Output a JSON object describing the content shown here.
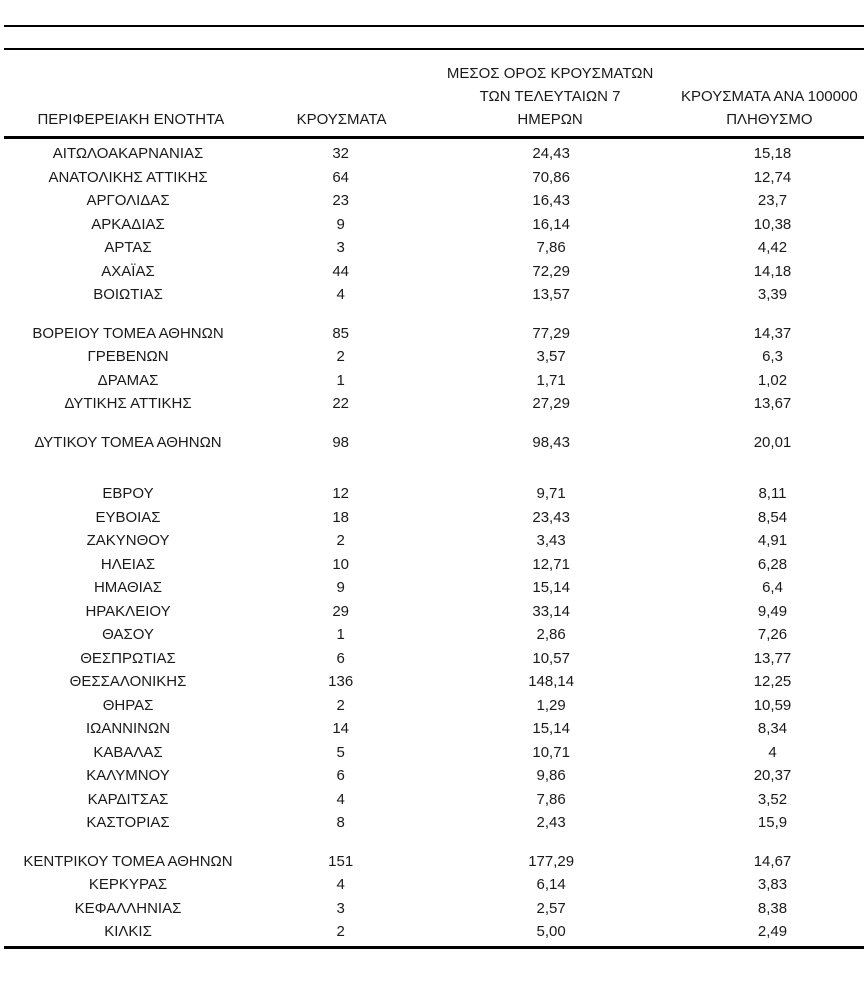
{
  "colors": {
    "text": "#1a1a1a",
    "rule": "#000000",
    "background": "#ffffff"
  },
  "table": {
    "header": {
      "region": "ΠΕΡΙΦΕΡΕΙΑΚΗ ΕΝΟΤΗΤΑ",
      "cases": "ΚΡΟΥΣΜΑΤΑ",
      "avg7_line1": "ΜΕΣΟΣ ΟΡΟΣ ΚΡΟΥΣΜΑΤΩΝ",
      "avg7_line2": "ΤΩΝ ΤΕΛΕΥΤΑΙΩΝ 7",
      "avg7_line3": "ΗΜΕΡΩΝ",
      "per100k_line1": "ΚΡΟΥΣΜΑΤΑ ΑΝΑ 100000",
      "per100k_line2": "ΠΛΗΘΥΣΜΟ"
    },
    "rows": [
      {
        "region": "ΑΙΤΩΛΟΑΚΑΡΝΑΝΙΑΣ",
        "cases": "32",
        "avg7": "24,43",
        "per100k": "15,18",
        "group_break": null
      },
      {
        "region": "ΑΝΑΤΟΛΙΚΗΣ ΑΤΤΙΚΗΣ",
        "cases": "64",
        "avg7": "70,86",
        "per100k": "12,74",
        "group_break": null
      },
      {
        "region": "ΑΡΓΟΛΙΔΑΣ",
        "cases": "23",
        "avg7": "16,43",
        "per100k": "23,7",
        "group_break": null
      },
      {
        "region": "ΑΡΚΑΔΙΑΣ",
        "cases": "9",
        "avg7": "16,14",
        "per100k": "10,38",
        "group_break": null
      },
      {
        "region": "ΑΡΤΑΣ",
        "cases": "3",
        "avg7": "7,86",
        "per100k": "4,42",
        "group_break": null
      },
      {
        "region": "ΑΧΑΪΑΣ",
        "cases": "44",
        "avg7": "72,29",
        "per100k": "14,18",
        "group_break": null
      },
      {
        "region": "ΒΟΙΩΤΙΑΣ",
        "cases": "4",
        "avg7": "13,57",
        "per100k": "3,39",
        "group_break": null
      },
      {
        "region": "ΒΟΡΕΙΟΥ ΤΟΜΕΑ ΑΘΗΝΩΝ",
        "cases": "85",
        "avg7": "77,29",
        "per100k": "14,37",
        "group_break": "small"
      },
      {
        "region": "ΓΡΕΒΕΝΩΝ",
        "cases": "2",
        "avg7": "3,57",
        "per100k": "6,3",
        "group_break": null
      },
      {
        "region": "ΔΡΑΜΑΣ",
        "cases": "1",
        "avg7": "1,71",
        "per100k": "1,02",
        "group_break": null
      },
      {
        "region": "ΔΥΤΙΚΗΣ ΑΤΤΙΚΗΣ",
        "cases": "22",
        "avg7": "27,29",
        "per100k": "13,67",
        "group_break": null
      },
      {
        "region": "ΔΥΤΙΚΟΥ ΤΟΜΕΑ ΑΘΗΝΩΝ",
        "cases": "98",
        "avg7": "98,43",
        "per100k": "20,01",
        "group_break": "small"
      },
      {
        "region": "ΕΒΡΟΥ",
        "cases": "12",
        "avg7": "9,71",
        "per100k": "8,11",
        "group_break": "large"
      },
      {
        "region": "ΕΥΒΟΙΑΣ",
        "cases": "18",
        "avg7": "23,43",
        "per100k": "8,54",
        "group_break": null
      },
      {
        "region": "ΖΑΚΥΝΘΟΥ",
        "cases": "2",
        "avg7": "3,43",
        "per100k": "4,91",
        "group_break": null
      },
      {
        "region": "ΗΛΕΙΑΣ",
        "cases": "10",
        "avg7": "12,71",
        "per100k": "6,28",
        "group_break": null
      },
      {
        "region": "ΗΜΑΘΙΑΣ",
        "cases": "9",
        "avg7": "15,14",
        "per100k": "6,4",
        "group_break": null
      },
      {
        "region": "ΗΡΑΚΛΕΙΟΥ",
        "cases": "29",
        "avg7": "33,14",
        "per100k": "9,49",
        "group_break": null
      },
      {
        "region": "ΘΑΣΟΥ",
        "cases": "1",
        "avg7": "2,86",
        "per100k": "7,26",
        "group_break": null
      },
      {
        "region": "ΘΕΣΠΡΩΤΙΑΣ",
        "cases": "6",
        "avg7": "10,57",
        "per100k": "13,77",
        "group_break": null
      },
      {
        "region": "ΘΕΣΣΑΛΟΝΙΚΗΣ",
        "cases": "136",
        "avg7": "148,14",
        "per100k": "12,25",
        "group_break": null
      },
      {
        "region": "ΘΗΡΑΣ",
        "cases": "2",
        "avg7": "1,29",
        "per100k": "10,59",
        "group_break": null
      },
      {
        "region": "ΙΩΑΝΝΙΝΩΝ",
        "cases": "14",
        "avg7": "15,14",
        "per100k": "8,34",
        "group_break": null
      },
      {
        "region": "ΚΑΒΑΛΑΣ",
        "cases": "5",
        "avg7": "10,71",
        "per100k": "4",
        "group_break": null
      },
      {
        "region": "ΚΑΛΥΜΝΟΥ",
        "cases": "6",
        "avg7": "9,86",
        "per100k": "20,37",
        "group_break": null
      },
      {
        "region": "ΚΑΡΔΙΤΣΑΣ",
        "cases": "4",
        "avg7": "7,86",
        "per100k": "3,52",
        "group_break": null
      },
      {
        "region": "ΚΑΣΤΟΡΙΑΣ",
        "cases": "8",
        "avg7": "2,43",
        "per100k": "15,9",
        "group_break": null
      },
      {
        "region": "ΚΕΝΤΡΙΚΟΥ ΤΟΜΕΑ ΑΘΗΝΩΝ",
        "cases": "151",
        "avg7": "177,29",
        "per100k": "14,67",
        "group_break": "small"
      },
      {
        "region": "ΚΕΡΚΥΡΑΣ",
        "cases": "4",
        "avg7": "6,14",
        "per100k": "3,83",
        "group_break": null
      },
      {
        "region": "ΚΕΦΑΛΛΗΝΙΑΣ",
        "cases": "3",
        "avg7": "2,57",
        "per100k": "8,38",
        "group_break": null
      },
      {
        "region": "ΚΙΛΚΙΣ",
        "cases": "2",
        "avg7": "5,00",
        "per100k": "2,49",
        "group_break": null
      }
    ]
  }
}
